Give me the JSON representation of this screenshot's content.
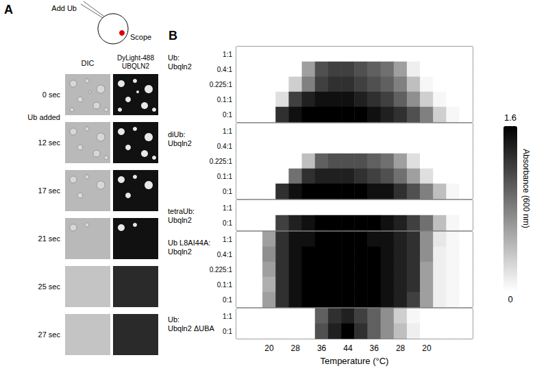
{
  "panel_a": {
    "label": "A",
    "diagram": {
      "inject": "Add Ub",
      "observe": "Scope"
    },
    "columns": [
      "DIC",
      "DyLight-488\nUBQLN2"
    ],
    "frames": [
      "0 sec",
      "12 sec",
      "17 sec",
      "21 sec",
      "25 sec",
      "27 sec"
    ],
    "event": "Ub added"
  },
  "chart_data": {
    "type": "heatmap",
    "label": "B",
    "xlabel": "Temperature (°C)",
    "categories": [
      null,
      null,
      "20",
      null,
      "28",
      null,
      "36",
      null,
      "44",
      null,
      "36",
      null,
      "28",
      null,
      "20",
      null,
      null,
      null
    ],
    "colorbar": {
      "label": "Absorbance (600 nm)",
      "range": [
        0,
        1.6
      ],
      "ticks": [
        0,
        1.6
      ]
    },
    "panels": [
      {
        "title": "Ub:\nUbqln2",
        "rows": [
          "1:1",
          "0.4:1",
          "0.225:1",
          "0.1:1",
          "0:1"
        ],
        "cells": [
          [
            0,
            0,
            0,
            0,
            0,
            0,
            0,
            0,
            0,
            0,
            0,
            0,
            0,
            0,
            0,
            0,
            0,
            0
          ],
          [
            0,
            0,
            0,
            0,
            0,
            0.6,
            1.1,
            1.2,
            1.2,
            1.1,
            1.0,
            0.9,
            0.6,
            0.1,
            0,
            0,
            0,
            0
          ],
          [
            0,
            0,
            0,
            0,
            0.3,
            0.8,
            1.2,
            1.3,
            1.3,
            1.2,
            1.1,
            1.0,
            0.8,
            0.4,
            0.05,
            0,
            0,
            0
          ],
          [
            0,
            0,
            0,
            0.2,
            1.2,
            1.4,
            1.5,
            1.5,
            1.5,
            1.4,
            1.3,
            1.2,
            1.0,
            0.7,
            0.3,
            0.05,
            0,
            0
          ],
          [
            0,
            0,
            0,
            1.3,
            1.5,
            1.6,
            1.6,
            1.6,
            1.6,
            1.6,
            1.5,
            1.4,
            1.3,
            1.1,
            0.8,
            0.3,
            0.05,
            0
          ]
        ]
      },
      {
        "title": "diUb:\nUbqln2",
        "rows": [
          "1:1",
          "0.4:1",
          "0.225:1",
          "0.1:1",
          "0:1"
        ],
        "cells": [
          [
            0,
            0,
            0,
            0,
            0,
            0,
            0,
            0,
            0,
            0,
            0,
            0,
            0,
            0,
            0,
            0,
            0,
            0
          ],
          [
            0,
            0,
            0,
            0,
            0,
            0,
            0,
            0,
            0,
            0,
            0,
            0,
            0,
            0,
            0,
            0,
            0,
            0
          ],
          [
            0,
            0,
            0,
            0,
            0,
            0.4,
            1.0,
            1.1,
            1.1,
            1.1,
            1.0,
            0.9,
            0.6,
            0.2,
            0,
            0,
            0,
            0
          ],
          [
            0,
            0,
            0,
            0,
            0.9,
            1.3,
            1.4,
            1.4,
            1.4,
            1.3,
            1.2,
            1.1,
            0.9,
            0.6,
            0.2,
            0,
            0,
            0
          ],
          [
            0,
            0,
            0,
            1.3,
            1.5,
            1.6,
            1.6,
            1.6,
            1.6,
            1.6,
            1.5,
            1.5,
            1.3,
            1.1,
            0.8,
            0.4,
            0.05,
            0
          ]
        ]
      },
      {
        "title": "tetraUb:\nUbqln2",
        "rows": [
          "1:1",
          "0:1"
        ],
        "cells": [
          [
            0,
            0,
            0,
            0,
            0,
            0,
            0,
            0,
            0,
            0,
            0,
            0,
            0,
            0,
            0,
            0,
            0,
            0
          ],
          [
            0,
            0,
            0,
            1.2,
            1.4,
            1.5,
            1.6,
            1.6,
            1.6,
            1.6,
            1.6,
            1.5,
            1.4,
            1.2,
            0.9,
            0.4,
            0.05,
            0
          ]
        ]
      },
      {
        "title": "Ub L8AI44A:\nUbqln2",
        "rows": [
          "1:1",
          "0.4:1",
          "0.225:1",
          "0.1:1",
          "0:1"
        ],
        "cells": [
          [
            0,
            0,
            0.6,
            1.3,
            1.5,
            1.5,
            1.6,
            1.6,
            1.6,
            1.6,
            1.5,
            1.5,
            1.4,
            1.3,
            0.7,
            0.15,
            0.05,
            0
          ],
          [
            0,
            0,
            0.7,
            1.3,
            1.5,
            1.6,
            1.6,
            1.6,
            1.6,
            1.6,
            1.6,
            1.5,
            1.4,
            1.3,
            0.7,
            0.1,
            0.05,
            0
          ],
          [
            0,
            0,
            0.6,
            1.3,
            1.5,
            1.6,
            1.6,
            1.6,
            1.6,
            1.6,
            1.6,
            1.5,
            1.4,
            1.3,
            0.6,
            0.1,
            0.05,
            0
          ],
          [
            0,
            0,
            0.5,
            1.3,
            1.5,
            1.6,
            1.6,
            1.6,
            1.6,
            1.6,
            1.6,
            1.5,
            1.4,
            1.3,
            0.6,
            0.1,
            0.05,
            0
          ],
          [
            0,
            0,
            0.6,
            1.3,
            1.5,
            1.6,
            1.6,
            1.6,
            1.6,
            1.6,
            1.6,
            1.5,
            1.4,
            1.2,
            0.6,
            0.1,
            0.05,
            0
          ]
        ]
      },
      {
        "title": "Ub:\nUbqln2 ΔUBA",
        "rows": [
          "1:1",
          "0:1"
        ],
        "cells": [
          [
            0,
            0,
            0,
            0,
            0,
            0,
            1.0,
            1.3,
            1.4,
            1.2,
            1.0,
            0.7,
            0.3,
            0.05,
            0,
            0,
            0,
            0
          ],
          [
            0,
            0,
            0,
            0,
            0,
            0,
            1.1,
            1.4,
            1.6,
            1.3,
            1.0,
            0.7,
            0.4,
            0.1,
            0,
            0,
            0,
            0
          ]
        ]
      }
    ]
  }
}
